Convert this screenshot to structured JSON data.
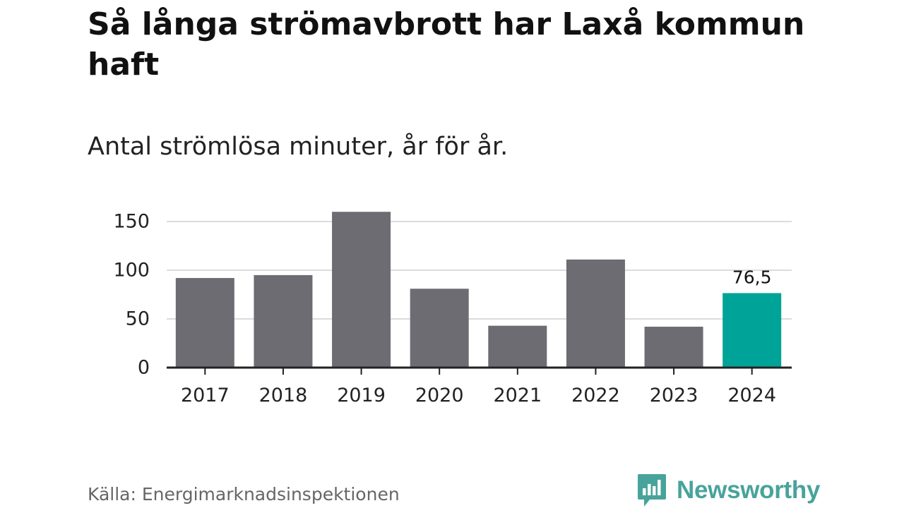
{
  "title": "Så långa strömavbrott har Laxå kommun haft",
  "subtitle": "Antal strömlösa minuter, år för år.",
  "source": "Källa: Energimarknadsinspektionen",
  "brand": {
    "name": "Newsworthy",
    "icon": "newsworthy-logo-icon",
    "color": "#48a39b"
  },
  "colors": {
    "bar": "#6d6c73",
    "highlight": "#00a398",
    "grid": "#dcdcdc",
    "axis": "#222222"
  },
  "chart_data": {
    "type": "bar",
    "categories": [
      "2017",
      "2018",
      "2019",
      "2020",
      "2021",
      "2022",
      "2023",
      "2024"
    ],
    "values": [
      92,
      95,
      160,
      81,
      43,
      111,
      42,
      76.5
    ],
    "highlight_index": 7,
    "data_labels": [
      {
        "index": 7,
        "text": "76,5"
      }
    ],
    "yticks": [
      0,
      50,
      100,
      150
    ],
    "ylim": [
      0,
      160
    ],
    "grid": true
  }
}
